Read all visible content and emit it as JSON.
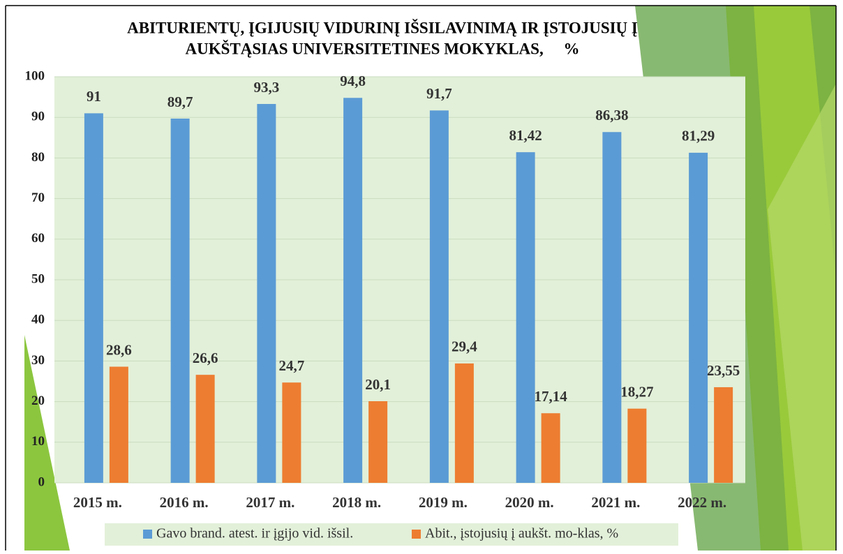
{
  "chart_data": {
    "type": "bar",
    "title": [
      "ABITURIENTŲ, ĮGIJUSIŲ VIDURINĮ IŠSILAVINIMĄ IR ĮSTOJUSIŲ Į",
      "AUKŠTĄSIAS UNIVERSITETINES MOKYKLAS,     %"
    ],
    "categories": [
      "2015 m.",
      "2016 m.",
      "2017 m.",
      "2018 m.",
      "2019 m.",
      "2020 m.",
      "2021 m.",
      "2022 m."
    ],
    "series": [
      {
        "name": "Gavo brand. atest. ir įgijo vid. išsil.",
        "color": "#5b9bd5",
        "values": [
          91,
          89.7,
          93.3,
          94.8,
          91.7,
          81.42,
          86.38,
          81.29
        ],
        "value_labels": [
          "91",
          "89,7",
          "93,3",
          "94,8",
          "91,7",
          "81,42",
          "86,38",
          "81,29"
        ]
      },
      {
        "name": "Abit., įstojusių į aukšt. mo-klas, %",
        "color": "#ed7d31",
        "values": [
          28.6,
          26.6,
          24.7,
          20.1,
          29.4,
          17.14,
          18.27,
          23.55
        ],
        "value_labels": [
          "28,6",
          "26,6",
          "24,7",
          "20,1",
          "29,4",
          "17,14",
          "18,27",
          "23,55"
        ]
      }
    ],
    "ylim": [
      0,
      100
    ],
    "yticks": [
      0,
      10,
      20,
      30,
      40,
      50,
      60,
      70,
      80,
      90,
      100
    ],
    "grid": true
  }
}
